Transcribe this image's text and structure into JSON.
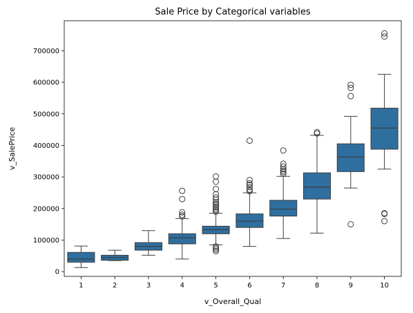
{
  "chart_data": {
    "type": "box",
    "title": "Sale Price by Categorical variables",
    "xlabel": "v_Overall_Qual",
    "ylabel": "v_SalePrice",
    "categories": [
      "1",
      "2",
      "3",
      "4",
      "5",
      "6",
      "7",
      "8",
      "9",
      "10"
    ],
    "ylim": [
      -15000,
      795000
    ],
    "yticks": [
      0,
      100000,
      200000,
      300000,
      400000,
      500000,
      600000,
      700000
    ],
    "ytick_labels": [
      "0",
      "100000",
      "200000",
      "300000",
      "400000",
      "500000",
      "600000",
      "700000"
    ],
    "grid": false,
    "box_color": "#2f6f9f",
    "line_color": "#3c3c3c",
    "boxes": [
      {
        "category": "1",
        "whisker_low": 13000,
        "q1": 30000,
        "median": 40000,
        "q3": 61000,
        "whisker_high": 81000,
        "outliers": []
      },
      {
        "category": "2",
        "whisker_low": 35000,
        "q1": 36000,
        "median": 45000,
        "q3": 52000,
        "whisker_high": 68000,
        "outliers": []
      },
      {
        "category": "3",
        "whisker_low": 52000,
        "q1": 68000,
        "median": 80000,
        "q3": 92000,
        "whisker_high": 130000,
        "outliers": []
      },
      {
        "category": "4",
        "whisker_low": 40000,
        "q1": 88000,
        "median": 107000,
        "q3": 120000,
        "whisker_high": 168000,
        "outliers": [
          175000,
          180000,
          188000,
          230000,
          256000
        ]
      },
      {
        "category": "5",
        "whisker_low": 85000,
        "q1": 120000,
        "median": 133000,
        "q3": 144000,
        "whisker_high": 185000,
        "outliers": [
          65000,
          70000,
          75000,
          80000,
          190000,
          195000,
          200000,
          205000,
          210000,
          215000,
          220000,
          228000,
          235000,
          245000,
          262000,
          285000,
          302000
        ]
      },
      {
        "category": "6",
        "whisker_low": 80000,
        "q1": 140000,
        "median": 160000,
        "q3": 183000,
        "whisker_high": 250000,
        "outliers": [
          255000,
          260000,
          268000,
          275000,
          280000,
          290000,
          415000
        ]
      },
      {
        "category": "7",
        "whisker_low": 105000,
        "q1": 176000,
        "median": 198000,
        "q3": 226000,
        "whisker_high": 302000,
        "outliers": [
          310000,
          315000,
          320000,
          325000,
          333000,
          342000,
          384000
        ]
      },
      {
        "category": "8",
        "whisker_low": 122000,
        "q1": 230000,
        "median": 268000,
        "q3": 313000,
        "whisker_high": 432000,
        "outliers": [
          438000,
          442000
        ]
      },
      {
        "category": "9",
        "whisker_low": 265000,
        "q1": 317000,
        "median": 363000,
        "q3": 405000,
        "whisker_high": 492000,
        "outliers": [
          150000,
          556000,
          582000,
          592000
        ]
      },
      {
        "category": "10",
        "whisker_low": 325000,
        "q1": 388000,
        "median": 455000,
        "q3": 518000,
        "whisker_high": 625000,
        "outliers": [
          160000,
          183000,
          185000,
          745000,
          755000
        ]
      }
    ]
  }
}
